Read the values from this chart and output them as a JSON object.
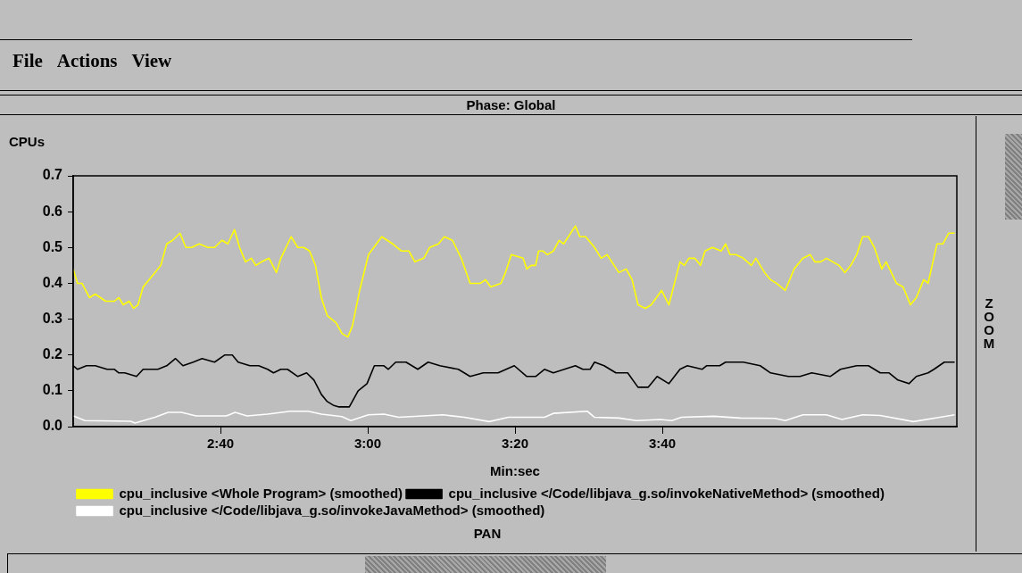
{
  "chart_data": {
    "type": "line",
    "title": "Phase: Global",
    "xlabel": "Min:sec",
    "ylabel": "CPUs",
    "annotations": [
      "File",
      "Actions",
      "View",
      "ZOOM",
      "PAN"
    ],
    "xlim": [
      140,
      260
    ],
    "xticks": [
      {
        "value": 160,
        "label": "2:40"
      },
      {
        "value": 180,
        "label": "3:00"
      },
      {
        "value": 200,
        "label": "3:20"
      },
      {
        "value": 220,
        "label": "3:40"
      }
    ],
    "ylim": [
      0,
      0.7
    ],
    "yticks": [
      {
        "value": 0,
        "label": "0.0"
      },
      {
        "value": 0.1,
        "label": "0.1"
      },
      {
        "value": 0.2,
        "label": "0.2"
      },
      {
        "value": 0.3,
        "label": "0.3"
      },
      {
        "value": 0.4,
        "label": "0.4"
      },
      {
        "value": 0.5,
        "label": "0.5"
      },
      {
        "value": 0.6,
        "label": "0.6"
      },
      {
        "value": 0.7,
        "label": "0.7"
      }
    ],
    "grid": false,
    "legend": "bottom",
    "marker": "none",
    "series": [
      {
        "name": "cpu_inclusive <Whole Program> (smoothed)",
        "color": "#ffff00",
        "x": [
          140,
          140.6,
          141.2,
          142.2,
          143,
          144.4,
          145.6,
          146.2,
          146.8,
          147.6,
          148.2,
          148.8,
          149.5,
          150.3,
          151.1,
          151.9,
          152.7,
          153.5,
          154.5,
          155.3,
          156.1,
          157.1,
          158.3,
          159.2,
          160.2,
          161,
          161.9,
          162.6,
          163.4,
          164.2,
          164.8,
          165.6,
          166.6,
          167.6,
          168.2,
          169.6,
          170.5,
          171.3,
          172.1,
          172.9,
          173.7,
          174.5,
          175.7,
          176.5,
          177.3,
          177.9,
          178.9,
          180.1,
          181.9,
          183.4,
          184.6,
          185.6,
          186.4,
          187.6,
          188.4,
          189.6,
          190.4,
          191.5,
          192.7,
          193.9,
          195.3,
          196,
          196.7,
          198.1,
          198.7,
          199.5,
          201.1,
          201.6,
          202.2,
          202.8,
          203.2,
          203.8,
          204.4,
          205.2,
          206,
          206.6,
          208.2,
          208.8,
          209.6,
          210.8,
          211.7,
          212.5,
          214.1,
          215.1,
          215.9,
          216.7,
          217.7,
          218.5,
          219.9,
          220.9,
          222.4,
          223,
          223.6,
          224.4,
          225.2,
          225.8,
          226.8,
          228,
          228.6,
          229.2,
          230,
          231,
          232.1,
          232.7,
          233.9,
          234.7,
          235.5,
          236.1,
          236.7,
          237.9,
          239.1,
          240.1,
          240.7,
          241.5,
          242.3,
          244,
          244.8,
          245.6,
          246.4,
          247.2,
          248,
          248.8,
          249.8,
          250.4,
          251.8,
          252.7,
          253.7,
          254.5,
          255.5,
          256.1,
          257.3,
          258.1,
          258.9,
          259.7
        ],
        "values": [
          0.44,
          0.4,
          0.4,
          0.36,
          0.37,
          0.35,
          0.35,
          0.36,
          0.34,
          0.35,
          0.33,
          0.34,
          0.39,
          0.41,
          0.43,
          0.45,
          0.51,
          0.52,
          0.54,
          0.5,
          0.5,
          0.51,
          0.5,
          0.5,
          0.52,
          0.51,
          0.55,
          0.5,
          0.46,
          0.47,
          0.45,
          0.46,
          0.47,
          0.43,
          0.47,
          0.53,
          0.5,
          0.5,
          0.49,
          0.45,
          0.36,
          0.31,
          0.29,
          0.26,
          0.25,
          0.28,
          0.38,
          0.48,
          0.53,
          0.51,
          0.49,
          0.49,
          0.46,
          0.47,
          0.5,
          0.51,
          0.53,
          0.52,
          0.47,
          0.4,
          0.4,
          0.41,
          0.39,
          0.4,
          0.43,
          0.48,
          0.47,
          0.44,
          0.45,
          0.45,
          0.49,
          0.49,
          0.48,
          0.49,
          0.52,
          0.51,
          0.56,
          0.53,
          0.53,
          0.5,
          0.47,
          0.48,
          0.43,
          0.44,
          0.41,
          0.34,
          0.33,
          0.34,
          0.38,
          0.34,
          0.46,
          0.45,
          0.47,
          0.47,
          0.45,
          0.49,
          0.5,
          0.49,
          0.51,
          0.48,
          0.48,
          0.47,
          0.45,
          0.47,
          0.43,
          0.41,
          0.4,
          0.39,
          0.38,
          0.44,
          0.47,
          0.48,
          0.46,
          0.46,
          0.47,
          0.45,
          0.43,
          0.45,
          0.48,
          0.53,
          0.53,
          0.5,
          0.44,
          0.46,
          0.4,
          0.39,
          0.34,
          0.36,
          0.41,
          0.4,
          0.51,
          0.51,
          0.54,
          0.54
        ]
      },
      {
        "name": "cpu_inclusive </Code/libjava_g.so/invokeNativeMethod> (smoothed)",
        "color": "#000000",
        "x": [
          140,
          140.6,
          141.8,
          143,
          144.6,
          145.6,
          146.2,
          147,
          148.6,
          149.5,
          151.5,
          152.7,
          153.9,
          154.9,
          156.3,
          157.5,
          159.2,
          160.6,
          161.6,
          162.4,
          164,
          165.2,
          166.4,
          167.2,
          168.2,
          169.1,
          170.5,
          171.7,
          172.7,
          173.7,
          174.5,
          175.3,
          176.1,
          177.5,
          178.7,
          179.9,
          180.9,
          182.2,
          182.8,
          183.8,
          185.2,
          186.8,
          188.2,
          189.8,
          192.3,
          193.9,
          195.7,
          197.7,
          199.9,
          201.6,
          202.8,
          204,
          205.2,
          208.2,
          209.2,
          210.2,
          210.8,
          212.1,
          213.7,
          215.3,
          216.7,
          218.1,
          218.9,
          219.3,
          220.9,
          222.4,
          223.4,
          225.4,
          226,
          227.8,
          228.6,
          231,
          233.3,
          234.7,
          237.1,
          238.7,
          240.3,
          242.8,
          244.2,
          246.4,
          248,
          249.6,
          250.8,
          252,
          253.5,
          254.5,
          256.1,
          256.9,
          258.3,
          259.7
        ],
        "values": [
          0.17,
          0.16,
          0.17,
          0.17,
          0.16,
          0.16,
          0.15,
          0.15,
          0.14,
          0.16,
          0.16,
          0.17,
          0.19,
          0.17,
          0.18,
          0.19,
          0.18,
          0.2,
          0.2,
          0.18,
          0.17,
          0.17,
          0.16,
          0.15,
          0.16,
          0.16,
          0.14,
          0.15,
          0.13,
          0.09,
          0.07,
          0.06,
          0.055,
          0.055,
          0.1,
          0.12,
          0.17,
          0.17,
          0.16,
          0.18,
          0.18,
          0.16,
          0.18,
          0.17,
          0.16,
          0.14,
          0.15,
          0.15,
          0.17,
          0.14,
          0.14,
          0.16,
          0.15,
          0.17,
          0.16,
          0.16,
          0.18,
          0.17,
          0.15,
          0.15,
          0.11,
          0.11,
          0.13,
          0.14,
          0.12,
          0.16,
          0.17,
          0.16,
          0.17,
          0.17,
          0.18,
          0.18,
          0.17,
          0.15,
          0.14,
          0.14,
          0.15,
          0.14,
          0.16,
          0.17,
          0.17,
          0.15,
          0.15,
          0.13,
          0.12,
          0.14,
          0.15,
          0.16,
          0.18,
          0.18
        ]
      },
      {
        "name": "cpu_inclusive </Code/libjava_g.so/invokeJavaMethod> (smoothed)",
        "color": "#ffffff",
        "x": [
          140,
          141.6,
          147.8,
          148.4,
          151.1,
          152.9,
          154.7,
          156.7,
          160.8,
          162,
          163.6,
          166.4,
          169.5,
          171.9,
          173.7,
          176.5,
          177.7,
          180.1,
          182.2,
          184.2,
          190.2,
          193.1,
          196.5,
          199.1,
          204,
          205.2,
          209.8,
          210.8,
          214.1,
          216.5,
          219.7,
          221.3,
          222.6,
          227,
          230.6,
          235.3,
          236.7,
          239.1,
          242.3,
          244.4,
          247.2,
          249.6,
          254.1,
          257.7,
          259.7
        ],
        "values": [
          0.03,
          0.017,
          0.015,
          0.01,
          0.026,
          0.04,
          0.04,
          0.03,
          0.03,
          0.04,
          0.03,
          0.035,
          0.043,
          0.043,
          0.035,
          0.028,
          0.017,
          0.033,
          0.035,
          0.026,
          0.033,
          0.026,
          0.014,
          0.026,
          0.026,
          0.037,
          0.043,
          0.026,
          0.024,
          0.017,
          0.02,
          0.017,
          0.026,
          0.029,
          0.024,
          0.023,
          0.017,
          0.033,
          0.033,
          0.02,
          0.033,
          0.031,
          0.014,
          0.026,
          0.033
        ]
      }
    ]
  }
}
